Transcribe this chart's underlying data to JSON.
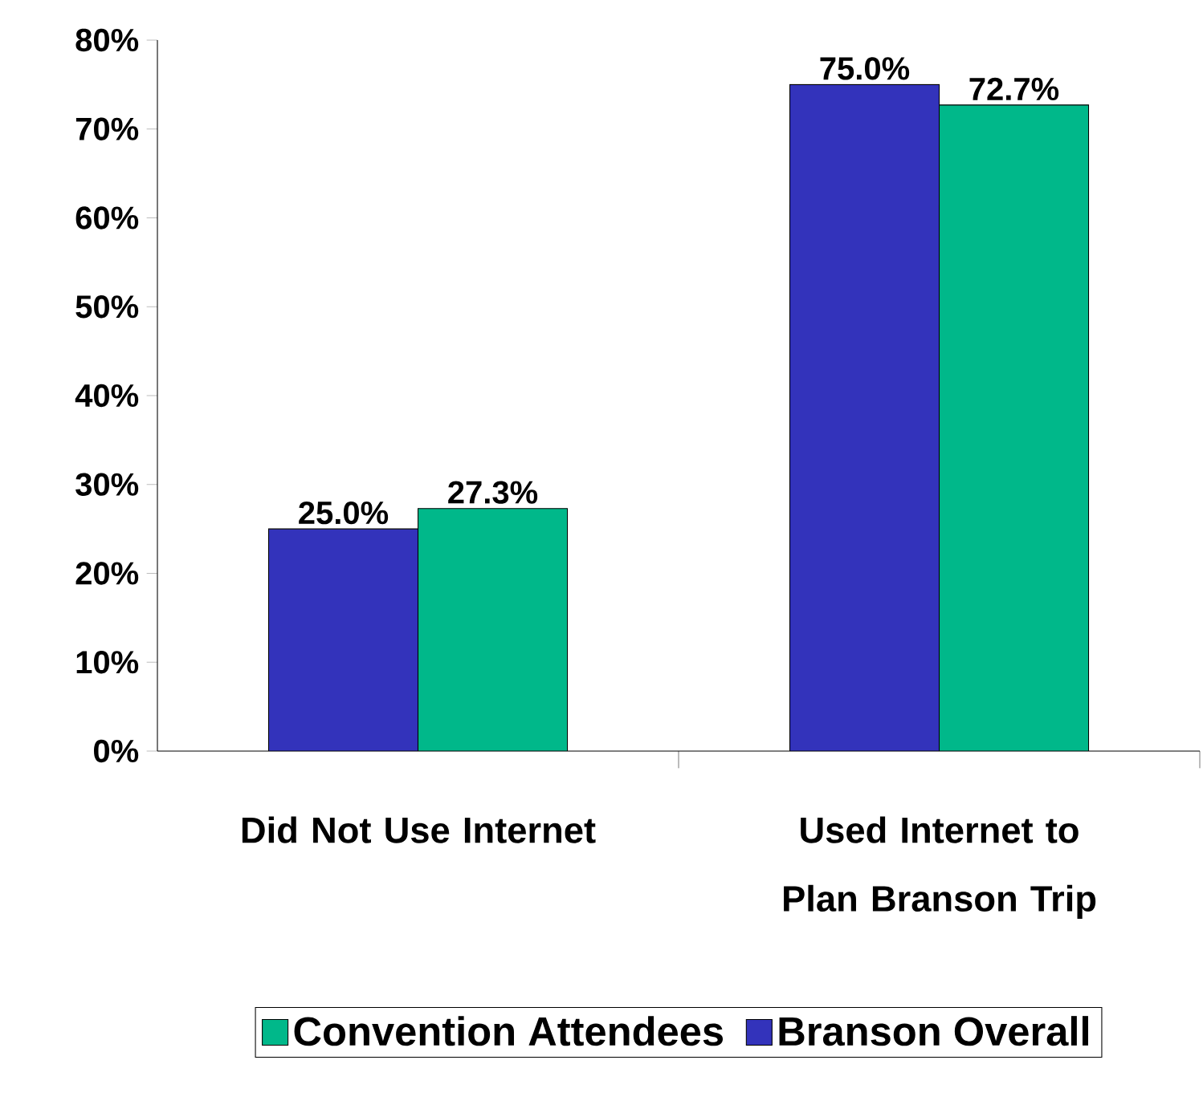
{
  "chart_data": {
    "type": "bar",
    "categories": [
      "Did Not Use Internet",
      "Used Internet to Plan Branson Trip"
    ],
    "series": [
      {
        "name": "Branson Overall",
        "color": "#3333bb",
        "values": [
          25.0,
          75.0
        ],
        "value_labels": [
          "25.0%",
          "75.0%"
        ]
      },
      {
        "name": "Convention Attendees",
        "color": "#00b88a",
        "values": [
          27.3,
          72.7
        ],
        "value_labels": [
          "27.3%",
          "72.7%"
        ]
      }
    ],
    "ylim": [
      0,
      80
    ],
    "yticks": [
      {
        "value": 0,
        "label": "0%"
      },
      {
        "value": 10,
        "label": "10%"
      },
      {
        "value": 20,
        "label": "20%"
      },
      {
        "value": 30,
        "label": "30%"
      },
      {
        "value": 40,
        "label": "40%"
      },
      {
        "value": 50,
        "label": "50%"
      },
      {
        "value": 60,
        "label": "60%"
      },
      {
        "value": 70,
        "label": "70%"
      },
      {
        "value": 80,
        "label": "80%"
      }
    ],
    "grid": false,
    "legend": "bottom"
  }
}
